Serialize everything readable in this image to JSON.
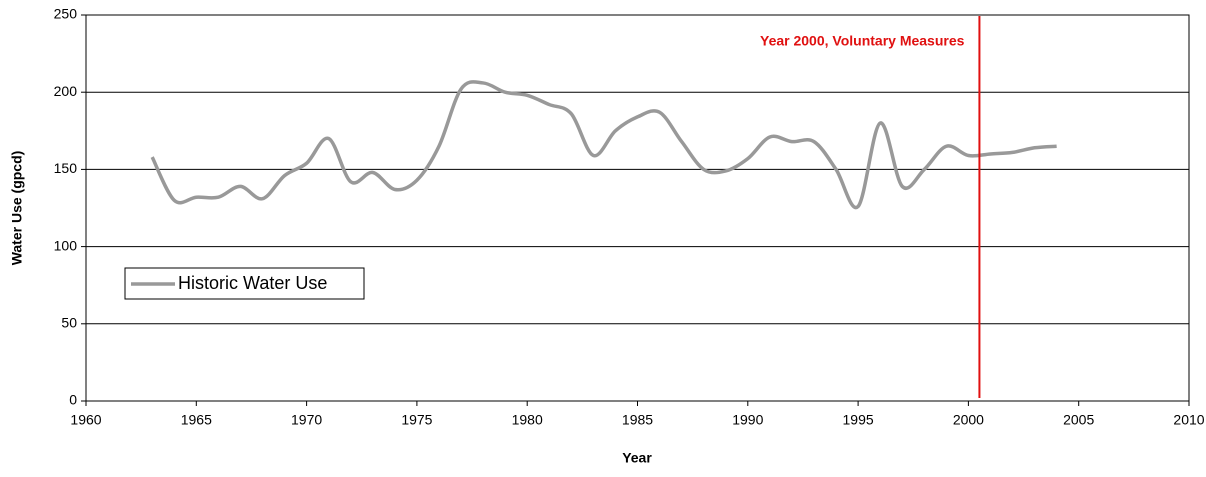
{
  "chart_data": {
    "type": "line",
    "x_label": "Year",
    "y_label": "Water Use (gpcd)",
    "x": [
      1963,
      1964,
      1965,
      1966,
      1967,
      1968,
      1969,
      1970,
      1971,
      1972,
      1973,
      1974,
      1975,
      1976,
      1977,
      1978,
      1979,
      1980,
      1981,
      1982,
      1983,
      1984,
      1985,
      1986,
      1987,
      1988,
      1989,
      1990,
      1991,
      1992,
      1993,
      1994,
      1995,
      1996,
      1997,
      1998,
      1999,
      2000,
      2001,
      2002,
      2003,
      2004
    ],
    "series": [
      {
        "name": "Historic Water Use",
        "color": "#999999",
        "values": [
          158,
          130,
          132,
          132,
          139,
          131,
          146,
          154,
          170,
          142,
          148,
          137,
          143,
          165,
          202,
          206,
          200,
          198,
          192,
          186,
          159,
          175,
          184,
          187,
          168,
          150,
          149,
          157,
          171,
          168,
          168,
          150,
          126,
          180,
          139,
          150,
          165,
          159,
          160,
          161,
          164,
          165
        ]
      }
    ],
    "xlim": [
      1960,
      2010
    ],
    "xticks": [
      1960,
      1965,
      1970,
      1975,
      1980,
      1985,
      1990,
      1995,
      2000,
      2005,
      2010
    ],
    "ylim": [
      0,
      250
    ],
    "yticks": [
      0,
      50,
      100,
      150,
      200,
      250
    ],
    "grid": true,
    "smooth": true,
    "legend_position": "left",
    "annotation": {
      "text": "Year 2000, Voluntary Measures",
      "x": 2000.5,
      "color": "#e01010"
    }
  }
}
